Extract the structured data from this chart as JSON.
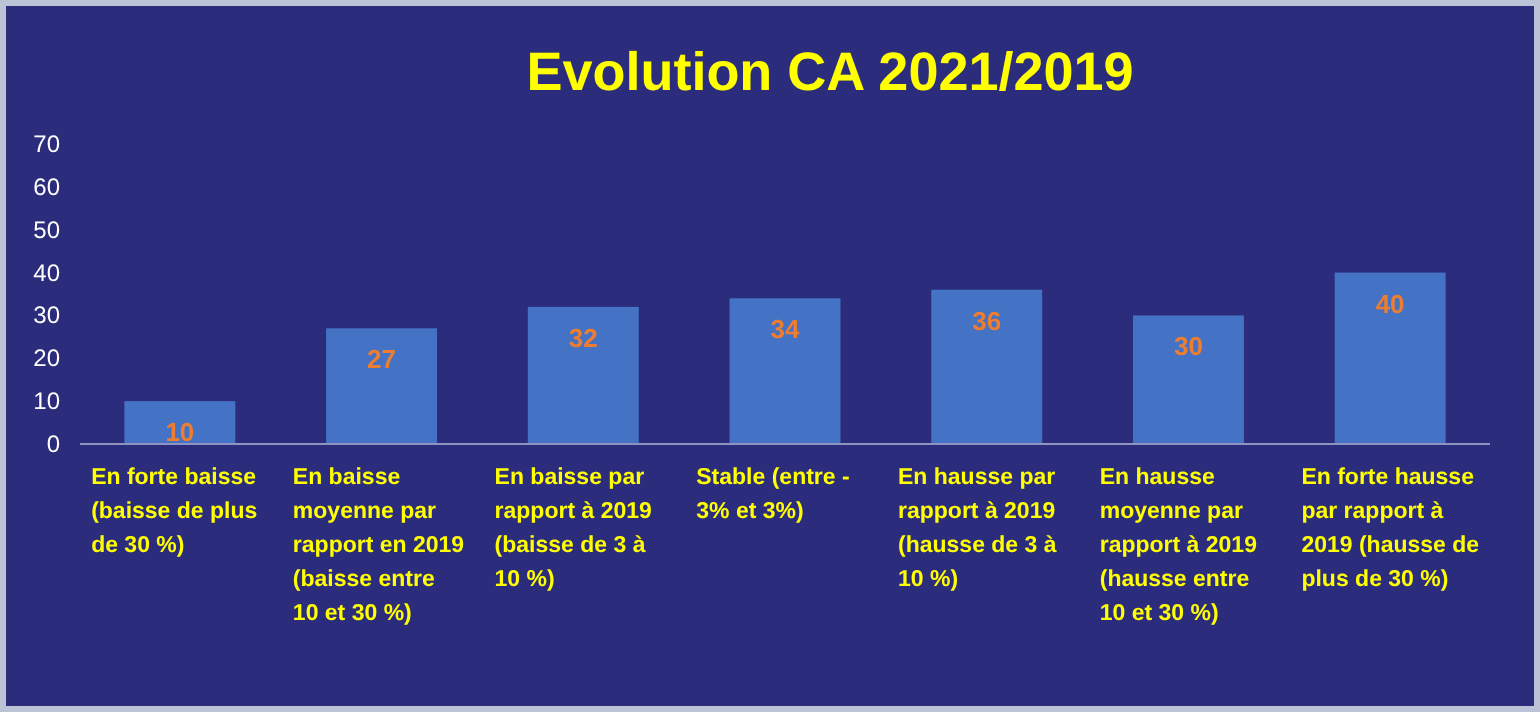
{
  "chart_data": {
    "type": "bar",
    "title": "Evolution CA 2021/2019",
    "categories": [
      "En forte baisse (baisse de plus de 30 %)",
      "En baisse moyenne par rapport en 2019 (baisse entre 10 et 30 %)",
      "En baisse par rapport à 2019 (baisse de 3 à 10 %)",
      "Stable (entre - 3% et 3%)",
      "En hausse par rapport à 2019 (hausse de 3 à 10 %)",
      "En hausse moyenne par rapport à 2019 (hausse entre 10 et 30 %)",
      "En forte hausse par rapport à 2019 (hausse de plus de 30 %)"
    ],
    "values": [
      10,
      27,
      32,
      34,
      36,
      30,
      40
    ],
    "color": "#4472c4",
    "ylim": [
      0,
      70
    ],
    "yticks": [
      0,
      10,
      20,
      30,
      40,
      50,
      60,
      70
    ],
    "data_labels": true,
    "grid": false
  }
}
